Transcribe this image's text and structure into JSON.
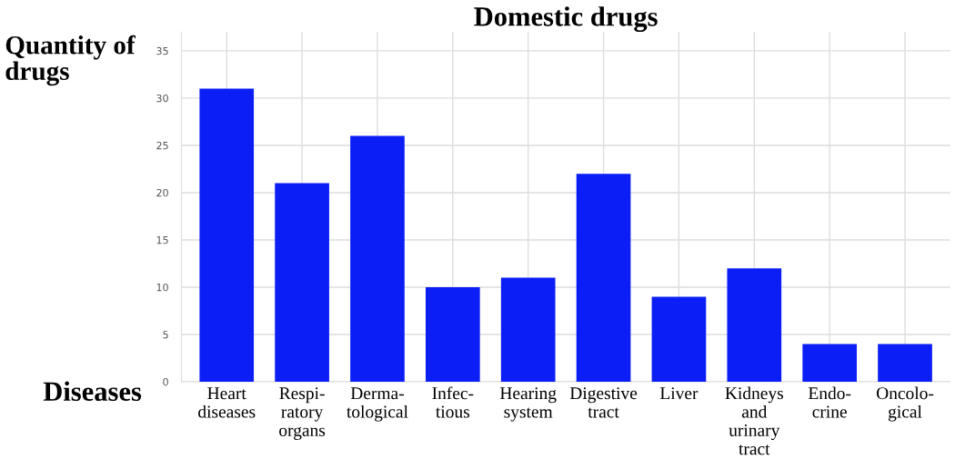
{
  "chart_data": {
    "type": "bar",
    "title": "Domestic drugs",
    "xlabel": "Diseases",
    "ylabel": "Quantity of\ndrugs",
    "categories": [
      "Heart\ndiseases",
      "Respi-\nratory\norgans",
      "Derma-\ntological",
      "Infec-\ntious",
      "Hearing\nsystem",
      "Digestive\ntract",
      "Liver",
      "Kidneys\nand\nurinary\ntract",
      "Endo-\ncrine",
      "Oncolo-\ngical"
    ],
    "values": [
      31,
      21,
      26,
      10,
      11,
      22,
      9,
      12,
      4,
      4
    ],
    "color": "#0a1ef5",
    "ylim": [
      0,
      37
    ],
    "yticks": [
      0,
      5,
      10,
      15,
      20,
      25,
      30,
      35
    ],
    "grid": true
  }
}
